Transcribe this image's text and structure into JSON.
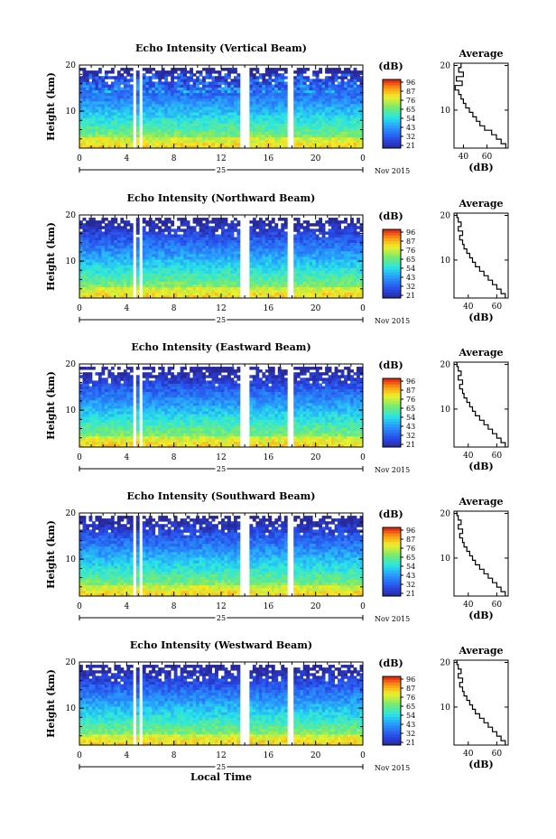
{
  "chart_data": [
    {
      "type": "heatmap",
      "title": "Echo Intensity (Vertical Beam)",
      "ylabel": "Height (km)",
      "yticks": [
        "20",
        "10"
      ],
      "xticks": [
        "0",
        "4",
        "8",
        "12",
        "16",
        "20",
        "0"
      ],
      "xlim": [
        0,
        24
      ],
      "ylim": [
        2,
        20
      ],
      "date_label": "25",
      "month_label": "Nov 2015",
      "colorbar": {
        "unit": "(dB)",
        "ticks": [
          "96",
          "87",
          "76",
          "65",
          "54",
          "43",
          "32",
          "21"
        ]
      },
      "average_profile": {
        "title": "Average",
        "xlabel": "(dB)",
        "xticks": [
          "40",
          "60"
        ],
        "xlim": [
          32,
          78
        ],
        "yticks": [
          "20",
          "10"
        ],
        "height_km": [
          2,
          3,
          4,
          5,
          6,
          7,
          8,
          9,
          10,
          11,
          12,
          13,
          14,
          15,
          16,
          17,
          18,
          19,
          20
        ],
        "db": [
          76,
          72,
          68,
          64,
          58,
          54,
          51,
          48,
          45,
          42,
          40,
          38,
          36,
          33,
          39,
          34,
          40,
          36,
          38
        ]
      },
      "data_gaps_hours": [
        [
          4.6,
          4.9
        ],
        [
          5.1,
          5.4
        ],
        [
          13.6,
          14.4
        ],
        [
          17.7,
          18.1
        ]
      ]
    },
    {
      "type": "heatmap",
      "title": "Echo Intensity (Northward Beam)",
      "ylabel": "Height (km)",
      "yticks": [
        "20",
        "10"
      ],
      "xticks": [
        "0",
        "4",
        "8",
        "12",
        "16",
        "20",
        "0"
      ],
      "xlim": [
        0,
        24
      ],
      "ylim": [
        2,
        20
      ],
      "date_label": "25",
      "month_label": "Nov 2015",
      "colorbar": {
        "unit": "(dB)",
        "ticks": [
          "96",
          "87",
          "76",
          "65",
          "54",
          "43",
          "32",
          "21"
        ]
      },
      "average_profile": {
        "title": "Average",
        "xlabel": "(dB)",
        "xticks": [
          "40",
          "60"
        ],
        "xlim": [
          30,
          68
        ],
        "yticks": [
          "20",
          "10"
        ],
        "height_km": [
          2,
          3,
          4,
          5,
          6,
          7,
          8,
          9,
          10,
          11,
          12,
          13,
          14,
          15,
          16,
          17,
          18,
          19,
          20
        ],
        "db": [
          66,
          63,
          60,
          57,
          54,
          51,
          48,
          45,
          43,
          41,
          39,
          37,
          36,
          34,
          36,
          33,
          35,
          33,
          32
        ]
      },
      "data_gaps_hours": [
        [
          4.6,
          4.9
        ],
        [
          5.1,
          5.4
        ],
        [
          13.6,
          14.4
        ],
        [
          17.7,
          18.1
        ]
      ]
    },
    {
      "type": "heatmap",
      "title": "Echo Intensity (Eastward Beam)",
      "ylabel": "Height (km)",
      "yticks": [
        "20",
        "10"
      ],
      "xticks": [
        "0",
        "4",
        "8",
        "12",
        "16",
        "20",
        "0"
      ],
      "xlim": [
        0,
        24
      ],
      "ylim": [
        2,
        20
      ],
      "date_label": "25",
      "month_label": "Nov 2015",
      "colorbar": {
        "unit": "(dB)",
        "ticks": [
          "96",
          "87",
          "76",
          "65",
          "54",
          "43",
          "32",
          "21"
        ]
      },
      "average_profile": {
        "title": "Average",
        "xlabel": "(dB)",
        "xticks": [
          "40",
          "60"
        ],
        "xlim": [
          30,
          68
        ],
        "yticks": [
          "20",
          "10"
        ],
        "height_km": [
          2,
          3,
          4,
          5,
          6,
          7,
          8,
          9,
          10,
          11,
          12,
          13,
          14,
          15,
          16,
          17,
          18,
          19,
          20
        ],
        "db": [
          66,
          63,
          60,
          57,
          54,
          51,
          48,
          45,
          43,
          41,
          39,
          37,
          36,
          34,
          36,
          33,
          35,
          33,
          32
        ]
      },
      "data_gaps_hours": [
        [
          4.6,
          4.9
        ],
        [
          5.1,
          5.4
        ],
        [
          13.6,
          14.4
        ],
        [
          17.7,
          18.1
        ]
      ]
    },
    {
      "type": "heatmap",
      "title": "Echo Intensity (Southward Beam)",
      "ylabel": "Height (km)",
      "yticks": [
        "20",
        "10"
      ],
      "xticks": [
        "0",
        "4",
        "8",
        "12",
        "16",
        "20",
        "0"
      ],
      "xlim": [
        0,
        24
      ],
      "ylim": [
        2,
        20
      ],
      "date_label": "25",
      "month_label": "Nov 2015",
      "colorbar": {
        "unit": "(dB)",
        "ticks": [
          "96",
          "87",
          "76",
          "65",
          "54",
          "43",
          "32",
          "21"
        ]
      },
      "average_profile": {
        "title": "Average",
        "xlabel": "(dB)",
        "xticks": [
          "40",
          "60"
        ],
        "xlim": [
          30,
          68
        ],
        "yticks": [
          "20",
          "10"
        ],
        "height_km": [
          2,
          3,
          4,
          5,
          6,
          7,
          8,
          9,
          10,
          11,
          12,
          13,
          14,
          15,
          16,
          17,
          18,
          19,
          20
        ],
        "db": [
          66,
          63,
          60,
          57,
          54,
          51,
          48,
          45,
          43,
          41,
          39,
          37,
          36,
          34,
          36,
          33,
          35,
          33,
          32
        ]
      },
      "data_gaps_hours": [
        [
          4.6,
          4.9
        ],
        [
          5.1,
          5.4
        ],
        [
          13.6,
          14.4
        ],
        [
          17.7,
          18.1
        ]
      ]
    },
    {
      "type": "heatmap",
      "title": "Echo Intensity (Westward Beam)",
      "ylabel": "Height (km)",
      "yticks": [
        "20",
        "10"
      ],
      "xticks": [
        "0",
        "4",
        "8",
        "12",
        "16",
        "20",
        "0"
      ],
      "xlim": [
        0,
        24
      ],
      "ylim": [
        2,
        20
      ],
      "date_label": "25",
      "month_label": "Nov 2015",
      "xlabel": "Local Time",
      "colorbar": {
        "unit": "(dB)",
        "ticks": [
          "96",
          "87",
          "76",
          "65",
          "54",
          "43",
          "32",
          "21"
        ]
      },
      "average_profile": {
        "title": "Average",
        "xlabel": "(dB)",
        "xticks": [
          "40",
          "60"
        ],
        "xlim": [
          30,
          68
        ],
        "yticks": [
          "20",
          "10"
        ],
        "height_km": [
          2,
          3,
          4,
          5,
          6,
          7,
          8,
          9,
          10,
          11,
          12,
          13,
          14,
          15,
          16,
          17,
          18,
          19,
          20
        ],
        "db": [
          66,
          63,
          60,
          57,
          54,
          51,
          48,
          45,
          43,
          41,
          39,
          37,
          36,
          34,
          36,
          33,
          35,
          33,
          32
        ]
      },
      "data_gaps_hours": [
        [
          4.6,
          4.9
        ],
        [
          5.1,
          5.4
        ],
        [
          13.6,
          14.4
        ],
        [
          17.7,
          18.1
        ]
      ]
    }
  ]
}
